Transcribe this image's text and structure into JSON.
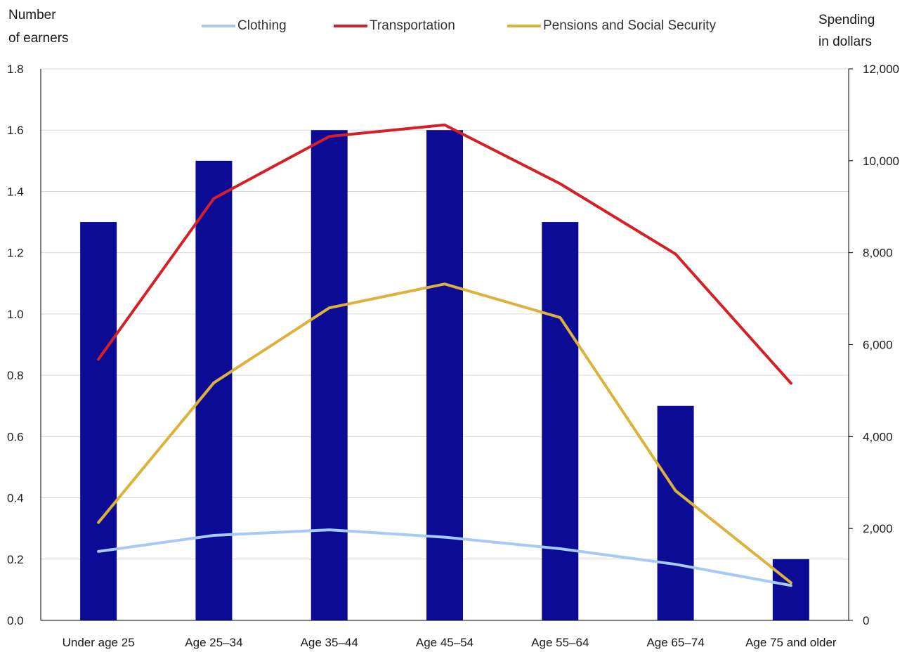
{
  "chart_data": {
    "type": "bar",
    "categories": [
      "Under age 25",
      "Age 25–34",
      "Age 35–44",
      "Age 45–54",
      "Age 55–64",
      "Age 65–74",
      "Age 75 and older"
    ],
    "bars": {
      "name": "",
      "axis": "left",
      "color": "#0b0b96",
      "values": [
        1.3,
        1.5,
        1.6,
        1.6,
        1.3,
        0.7,
        0.2
      ]
    },
    "series": [
      {
        "name": "Clothing",
        "type": "line",
        "axis": "right",
        "color": "#a7c9f5",
        "values": [
          1500,
          1850,
          1970,
          1810,
          1560,
          1220,
          760
        ]
      },
      {
        "name": "Transportation",
        "type": "line",
        "axis": "right",
        "color": "#d42027",
        "values": [
          5680,
          9180,
          10530,
          10780,
          9500,
          7970,
          5160
        ]
      },
      {
        "name": "Pensions and Social Security",
        "type": "line",
        "axis": "right",
        "color": "#ddb23c",
        "values": [
          2130,
          5170,
          6800,
          7320,
          6590,
          2820,
          820
        ]
      }
    ],
    "y_left": {
      "title_line1": "Number",
      "title_line2": "of earners",
      "range": [
        0,
        1.8
      ],
      "ticks": [
        "0.0",
        "0.2",
        "0.4",
        "0.6",
        "0.8",
        "1.0",
        "1.2",
        "1.4",
        "1.6",
        "1.8"
      ]
    },
    "y_right": {
      "title_line1": "Spending",
      "title_line2": "in dollars",
      "range": [
        0,
        12000
      ],
      "ticks": [
        "0",
        "2,000",
        "4,000",
        "6,000",
        "8,000",
        "10,000",
        "12,000"
      ]
    },
    "grid": true,
    "legend": "top"
  }
}
